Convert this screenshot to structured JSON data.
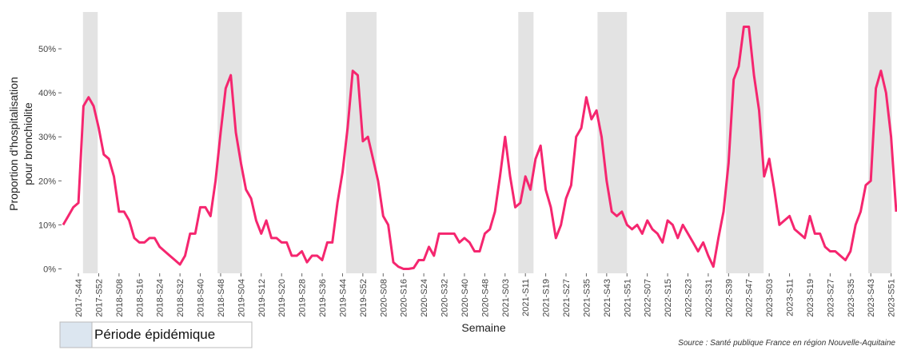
{
  "chart_data": {
    "type": "line",
    "y_label": [
      "Proportion d'hospitalisation",
      "pour bronchiolite"
    ],
    "x_label": "Semaine",
    "source": "Source : Santé publique France en région Nouvelle-Aquitaine",
    "legend_label": "Période épidémique",
    "period_color": "#e3e3e3",
    "legend_color": "#dce6f0",
    "periods": [
      [
        3.9,
        6.8
      ],
      [
        30.4,
        35.2
      ],
      [
        55.7,
        61.7
      ],
      [
        89.6,
        92.6
      ],
      [
        105.2,
        111
      ],
      [
        130.5,
        137.9
      ],
      [
        158.5,
        163.1
      ]
    ],
    "categories": [
      null,
      null,
      null,
      "2017-S44",
      null,
      null,
      null,
      "2017-S52",
      null,
      null,
      null,
      "2018-S08",
      null,
      null,
      null,
      "2018-S16",
      null,
      null,
      null,
      "2018-S24",
      null,
      null,
      null,
      "2018-S32",
      null,
      null,
      null,
      "2018-S40",
      null,
      null,
      null,
      "2018-S48",
      null,
      null,
      null,
      "2019-S04",
      null,
      null,
      null,
      "2019-S12",
      null,
      null,
      null,
      "2019-S20",
      null,
      null,
      null,
      "2019-S28",
      null,
      null,
      null,
      "2019-S36",
      null,
      null,
      null,
      "2019-S44",
      null,
      null,
      null,
      "2019-S52",
      null,
      null,
      null,
      "2020-S08",
      null,
      null,
      null,
      "2020-S16",
      null,
      null,
      null,
      "2020-S24",
      null,
      null,
      null,
      "2020-S32",
      null,
      null,
      null,
      "2020-S40",
      null,
      null,
      null,
      "2020-S48",
      null,
      null,
      null,
      "2021-S03",
      null,
      null,
      null,
      "2021-S11",
      null,
      null,
      null,
      "2021-S19",
      null,
      null,
      null,
      "2021-S27",
      null,
      null,
      null,
      "2021-S35",
      null,
      null,
      null,
      "2021-S43",
      null,
      null,
      null,
      "2021-S51",
      null,
      null,
      null,
      "2022-S07",
      null,
      null,
      null,
      "2022-S15",
      null,
      null,
      null,
      "2022-S23",
      null,
      null,
      null,
      "2022-S31",
      null,
      null,
      null,
      "2022-S39",
      null,
      null,
      null,
      "2022-S47",
      null,
      null,
      null,
      "2023-S03",
      null,
      null,
      null,
      "2023-S11",
      null,
      null,
      null,
      "2023-S19",
      null,
      null,
      null,
      "2023-S27",
      null,
      null,
      null,
      "2023-S35",
      null,
      null,
      null,
      "2023-S43",
      null,
      null,
      null,
      "2023-S51",
      null
    ],
    "color": "#f5266f",
    "values": [
      10,
      12,
      14,
      15,
      37,
      39,
      37,
      32,
      26,
      25,
      21,
      13,
      13,
      11,
      7,
      6,
      6,
      7,
      7,
      5,
      4,
      3,
      2,
      1,
      3,
      8,
      8,
      14,
      14,
      12,
      20,
      31,
      41,
      44,
      31,
      24,
      18,
      16,
      11,
      8,
      11,
      7,
      7,
      6,
      6,
      3,
      3,
      4,
      1.5,
      3,
      3,
      2,
      6,
      6,
      15,
      22,
      32,
      45,
      44,
      29,
      30,
      25,
      20,
      12,
      10,
      1.5,
      0.5,
      0,
      0,
      0.2,
      2,
      2,
      5,
      3,
      8,
      8,
      8,
      8,
      6,
      7,
      6,
      4,
      4,
      8,
      9,
      13,
      21,
      30,
      21,
      14,
      15,
      21,
      18,
      25,
      28,
      18,
      14,
      7,
      10,
      16,
      19,
      30,
      32,
      39,
      34,
      36,
      30,
      20,
      13,
      12,
      13,
      10,
      9,
      10,
      8,
      11,
      9,
      8,
      6,
      11,
      10,
      7,
      10,
      8,
      6,
      4,
      6,
      3,
      0.5,
      7,
      13,
      24,
      43,
      46,
      55,
      55,
      44,
      36,
      21,
      25,
      18,
      10,
      11,
      12,
      9,
      8,
      7,
      12,
      8,
      8,
      5,
      4,
      4,
      3,
      2,
      4,
      10,
      13,
      19,
      20,
      41,
      45,
      40,
      30,
      13
    ],
    "ylim": [
      -1,
      58
    ],
    "yticks": [
      {
        "value": 0,
        "label": "0%"
      },
      {
        "value": 10,
        "label": "10%"
      },
      {
        "value": 20,
        "label": "20%"
      },
      {
        "value": 30,
        "label": "30%"
      },
      {
        "value": 40,
        "label": "40%"
      },
      {
        "value": 50,
        "label": "50%"
      }
    ],
    "grid": false
  }
}
